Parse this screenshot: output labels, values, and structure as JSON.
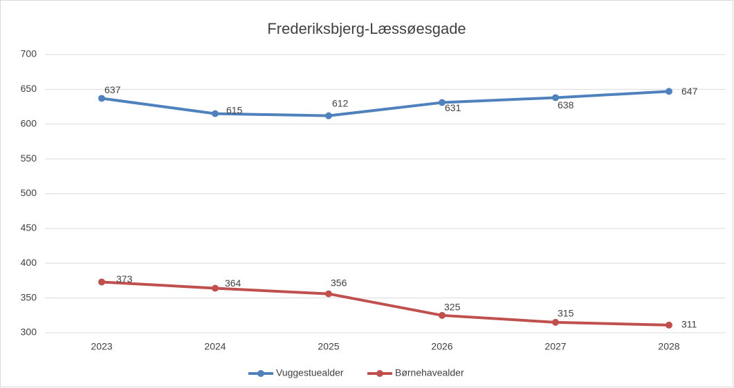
{
  "chart_data": {
    "type": "line",
    "title": "Frederiksbjerg-Læssøesgade",
    "categories": [
      "2023",
      "2024",
      "2025",
      "2026",
      "2027",
      "2028"
    ],
    "series": [
      {
        "name": "Vuggestuealder",
        "color": "#4f81bd",
        "values": [
          637,
          615,
          612,
          631,
          638,
          647
        ]
      },
      {
        "name": "Børnehavealder",
        "color": "#c0504d",
        "values": [
          373,
          364,
          356,
          325,
          315,
          311
        ]
      }
    ],
    "ylim": [
      300,
      700
    ],
    "yticks": [
      300,
      350,
      400,
      450,
      500,
      550,
      600,
      650,
      700
    ],
    "grid": true,
    "legend": "bottom"
  }
}
